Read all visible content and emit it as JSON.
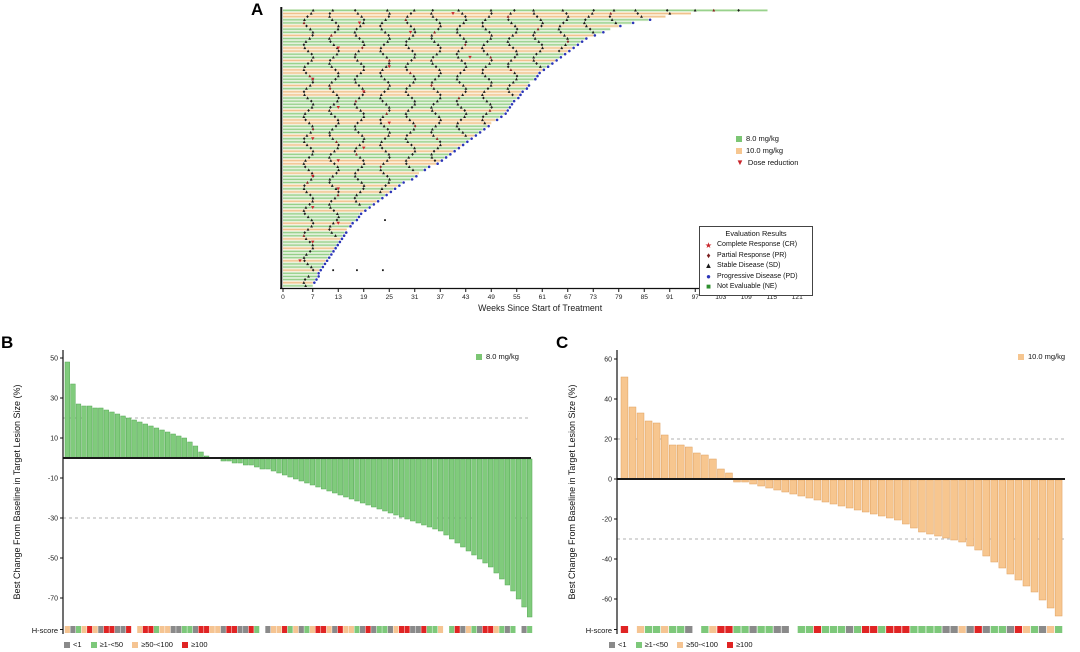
{
  "chart_data": [
    {
      "id": "A",
      "type": "swimmer",
      "panel_label": "A",
      "xlabel": "Weeks Since Start of Treatment",
      "xticks": [
        0,
        7,
        13,
        19,
        25,
        31,
        37,
        43,
        49,
        55,
        61,
        67,
        73,
        79,
        85,
        91,
        97,
        103,
        109,
        115,
        121
      ],
      "xlim": [
        0,
        121
      ],
      "dose_legend": [
        {
          "label": "8.0 mg/kg",
          "color": "#7cc674",
          "glyph": "■"
        },
        {
          "label": "10.0 mg/kg",
          "color": "#f6c690",
          "glyph": "■"
        },
        {
          "label": "Dose reduction",
          "color": "#c9252b",
          "glyph": "▼"
        }
      ],
      "eval_legend": {
        "title": "Evaluation Results",
        "items": [
          {
            "label": "Complete Response (CR)",
            "color": "#c9252b",
            "glyph": "★"
          },
          {
            "label": "Partial Response (PR)",
            "color": "#7b1f1f",
            "glyph": "♦"
          },
          {
            "label": "Stable Disease (SD)",
            "color": "#1a1a1a",
            "glyph": "▲"
          },
          {
            "label": "Progressive Disease (PD)",
            "color": "#2b35b8",
            "glyph": "●"
          },
          {
            "label": "Not Evaluable (NE)",
            "color": "#2f8f2f",
            "glyph": "■"
          }
        ]
      },
      "bar_colors": {
        "g": {
          "light": "#cfe9c6",
          "dark": "#8fcd83"
        },
        "o": {
          "light": "#f8e2c0",
          "dark": "#f0bd88"
        }
      },
      "weeks": [
        114,
        96,
        90,
        86,
        82,
        79,
        77,
        75,
        73,
        71,
        70,
        69,
        68,
        67,
        66,
        65,
        64,
        63,
        62,
        61,
        60,
        59.5,
        59,
        58,
        57.5,
        57,
        56,
        55.5,
        55,
        54,
        53.5,
        53,
        52.5,
        52,
        51,
        50,
        49,
        48,
        47,
        46,
        45,
        44,
        43,
        42,
        41,
        40,
        39,
        38,
        37,
        36,
        34,
        33,
        32,
        31,
        30,
        28,
        27,
        26,
        25,
        24,
        23,
        22,
        21,
        20,
        19,
        18,
        17.5,
        17,
        16,
        15.5,
        15,
        14.5,
        14,
        13.5,
        13,
        12.5,
        12,
        11.5,
        11,
        10.5,
        10,
        9.5,
        9,
        8.5,
        8,
        8,
        7.5,
        7,
        7
      ],
      "dose": "googgoggogggooggoggoogggogooggggoggoogggoggogoggooggogggogoggoggogggogoggoggogggoggogggoggg",
      "pd_end": "---ppp-pppppppppppppppp-pppppppppppp-ppppppppppppppp-ppppppppppppppppp-ppppppppppppppppp-ppp",
      "red_marks": [
        [
          1,
          40
        ],
        [
          4,
          18
        ],
        [
          7,
          30
        ],
        [
          12,
          13
        ],
        [
          15,
          44
        ],
        [
          18,
          25
        ],
        [
          22,
          7
        ],
        [
          26,
          19
        ],
        [
          31,
          13
        ],
        [
          36,
          25
        ],
        [
          41,
          7
        ],
        [
          44,
          19
        ],
        [
          48,
          13
        ],
        [
          53,
          7
        ],
        [
          57,
          13
        ],
        [
          63,
          7
        ],
        [
          68,
          13
        ],
        [
          74,
          7
        ],
        [
          80,
          4
        ]
      ],
      "isolated_dots": [
        [
          11.8,
          83
        ],
        [
          17.4,
          83
        ],
        [
          23.5,
          83
        ],
        [
          24,
          67
        ]
      ]
    },
    {
      "id": "B",
      "type": "waterfall-bar",
      "panel_label": "B",
      "legend": {
        "label": "8.0 mg/kg",
        "color": "#7cc674"
      },
      "ylabel": "Best Change From Baseline in Target Lesion Size (%)",
      "yticks": [
        50,
        30,
        10,
        -10,
        -30,
        -50,
        -70
      ],
      "ylim": [
        -80,
        52
      ],
      "dashed_lines": [
        20,
        -30
      ],
      "bar_color": "#80cb7c",
      "bar_edge": "#55a855",
      "hscore_label": "H-score",
      "hscore_legend": [
        {
          "key": "n",
          "label": "<1",
          "color": "#8a8a8a"
        },
        {
          "key": "g",
          "label": "≥1-<50",
          "color": "#7dc87a"
        },
        {
          "key": "o",
          "label": "≥50-<100",
          "color": "#f5c492"
        },
        {
          "key": "r",
          "label": "≥100",
          "color": "#e02424"
        }
      ],
      "values": [
        48,
        37,
        27,
        26,
        26,
        25,
        25,
        24,
        23,
        22,
        21,
        20,
        19,
        18,
        17,
        16,
        15,
        14,
        13,
        12,
        11,
        10,
        8,
        6,
        3,
        1,
        0,
        0,
        -1,
        -1,
        -2,
        -2,
        -3,
        -3,
        -4,
        -5,
        -5,
        -6,
        -7,
        -8,
        -9,
        -10,
        -11,
        -12,
        -13,
        -14,
        -15,
        -16,
        -17,
        -18,
        -19,
        -20,
        -21,
        -22,
        -23,
        -24,
        -25,
        -26,
        -27,
        -28,
        -29,
        -30,
        -31,
        -32,
        -33,
        -34,
        -35,
        -36,
        -38,
        -40,
        -42,
        -44,
        -46,
        -48,
        -50,
        -52,
        -54,
        -57,
        -60,
        -63,
        -66,
        -70,
        -74,
        -79
      ],
      "hscore": "ongoronrrnnr-orrgoonnggnrroonrrnnrg-noorgongorronroognrnggnorrnnrggo-grnognrrogng-ng"
    },
    {
      "id": "C",
      "type": "waterfall-bar",
      "panel_label": "C",
      "legend": {
        "label": "10.0 mg/kg",
        "color": "#f6c690"
      },
      "ylabel": "Best Change From Baseline in Target Lesion Size (%)",
      "yticks": [
        60,
        40,
        20,
        0,
        -20,
        -40,
        -60
      ],
      "ylim": [
        -72,
        62
      ],
      "dashed_lines": [
        20,
        -30
      ],
      "bar_color": "#f7c68f",
      "bar_edge": "#dfa05f",
      "hscore_label": "H-score",
      "hscore_legend": [
        {
          "key": "n",
          "label": "<1",
          "color": "#8a8a8a"
        },
        {
          "key": "g",
          "label": "≥1-<50",
          "color": "#7dc87a"
        },
        {
          "key": "o",
          "label": "≥50-<100",
          "color": "#f5c492"
        },
        {
          "key": "r",
          "label": "≥100",
          "color": "#e02424"
        }
      ],
      "values": [
        51,
        36,
        33,
        29,
        28,
        22,
        17,
        17,
        16,
        13,
        12,
        10,
        5,
        3,
        -1,
        -1,
        -2,
        -3,
        -4,
        -5,
        -6,
        -7,
        -8,
        -9,
        -10,
        -11,
        -12,
        -13,
        -14,
        -15,
        -16,
        -17,
        -18,
        -19,
        -20,
        -22,
        -24,
        -26,
        -27,
        -28,
        -29,
        -30,
        -31,
        -33,
        -35,
        -38,
        -41,
        -44,
        -47,
        -50,
        -53,
        -56,
        -60,
        -64,
        -68
      ],
      "hscore": "r-oggoggn-gorrggnggnn-ggrgggngrrgrrrggggnnonrnggnrognog"
    }
  ]
}
